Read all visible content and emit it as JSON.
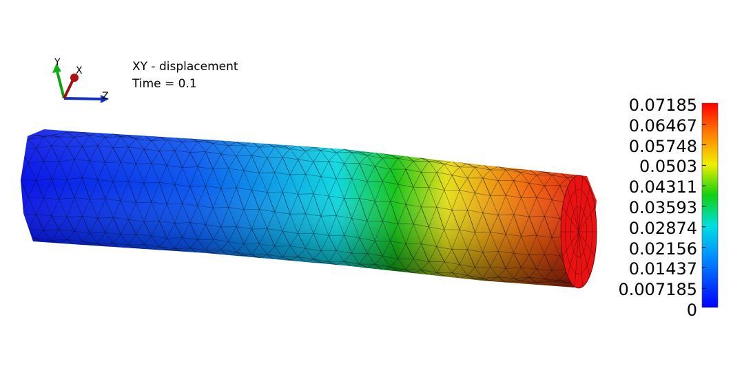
{
  "info": {
    "field_label": "XY - displacement",
    "time_label": "Time = 0.1"
  },
  "axes_triad": {
    "x_label": "X",
    "y_label": "Y",
    "z_label": "Z",
    "x_color": "#b01010",
    "y_color": "#10b010",
    "z_color": "#1030c0"
  },
  "colorbar": {
    "min": 0,
    "max": 0.07185,
    "colormap": "rainbow (blue-cyan-green-yellow-red)",
    "ticks": [
      "0.07185",
      "0.06467",
      "0.05748",
      "0.0503",
      "0.04311",
      "0.03593",
      "0.02874",
      "0.02156",
      "0.01437",
      "0.007185",
      "0"
    ]
  },
  "model": {
    "shape": "cylinder",
    "mesh": "triangulated surface",
    "low_color": "#0a14e6",
    "high_color": "#e01010"
  }
}
